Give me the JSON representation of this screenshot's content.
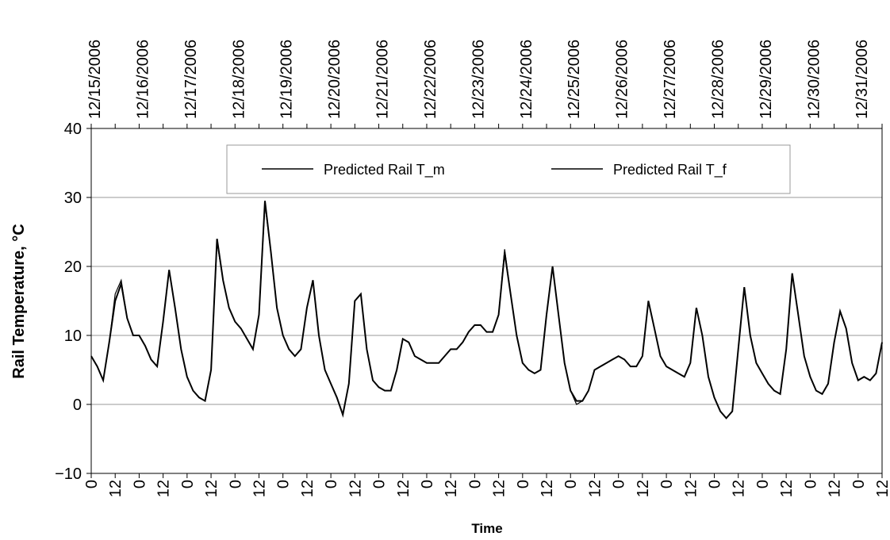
{
  "chart_data": {
    "type": "line",
    "ylabel": "Rail Temperature, °C",
    "xlabel": "Time",
    "xlim": [
      0,
      396
    ],
    "ylim": [
      -10,
      40
    ],
    "yticks": [
      {
        "value": -10,
        "label": "−10"
      },
      0,
      10,
      20,
      30,
      40
    ],
    "grid": true,
    "legend": "top",
    "xticks": [
      0,
      12,
      {
        "value": 24,
        "label": "0"
      },
      {
        "value": 36,
        "label": "12"
      },
      {
        "value": 48,
        "label": "0"
      },
      {
        "value": 60,
        "label": "12"
      },
      {
        "value": 72,
        "label": "0"
      },
      {
        "value": 84,
        "label": "12"
      },
      {
        "value": 96,
        "label": "0"
      },
      {
        "value": 108,
        "label": "12"
      },
      {
        "value": 120,
        "label": "0"
      },
      {
        "value": 132,
        "label": "12"
      },
      {
        "value": 144,
        "label": "0"
      },
      {
        "value": 156,
        "label": "12"
      },
      {
        "value": 168,
        "label": "0"
      },
      {
        "value": 180,
        "label": "12"
      },
      {
        "value": 192,
        "label": "0"
      },
      {
        "value": 204,
        "label": "12"
      },
      {
        "value": 216,
        "label": "0"
      },
      {
        "value": 228,
        "label": "12"
      },
      {
        "value": 240,
        "label": "0"
      },
      {
        "value": 252,
        "label": "12"
      },
      {
        "value": 264,
        "label": "0"
      },
      {
        "value": 276,
        "label": "12"
      },
      {
        "value": 288,
        "label": "0"
      },
      {
        "value": 300,
        "label": "12"
      },
      {
        "value": 312,
        "label": "0"
      },
      {
        "value": 324,
        "label": "12"
      },
      {
        "value": 336,
        "label": "0"
      },
      {
        "value": 348,
        "label": "12"
      },
      {
        "value": 360,
        "label": "0"
      },
      {
        "value": 372,
        "label": "12"
      },
      {
        "value": 384,
        "label": "0"
      },
      {
        "value": 396,
        "label": "12"
      }
    ],
    "x2ticks": [
      {
        "value": 0,
        "label": "12/15/2006"
      },
      {
        "value": 24,
        "label": "12/16/2006"
      },
      {
        "value": 48,
        "label": "12/17/2006"
      },
      {
        "value": 72,
        "label": "12/18/2006"
      },
      {
        "value": 96,
        "label": "12/19/2006"
      },
      {
        "value": 120,
        "label": "12/20/2006"
      },
      {
        "value": 144,
        "label": "12/21/2006"
      },
      {
        "value": 168,
        "label": "12/22/2006"
      },
      {
        "value": 192,
        "label": "12/23/2006"
      },
      {
        "value": 216,
        "label": "12/24/2006"
      },
      {
        "value": 240,
        "label": "12/25/2006"
      },
      {
        "value": 264,
        "label": "12/26/2006"
      },
      {
        "value": 288,
        "label": "12/27/2006"
      },
      {
        "value": 312,
        "label": "12/28/2006"
      },
      {
        "value": 336,
        "label": "12/29/2006"
      },
      {
        "value": 360,
        "label": "12/30/2006"
      },
      {
        "value": 384,
        "label": "12/31/2006"
      }
    ],
    "x": [
      0,
      3,
      6,
      9,
      12,
      15,
      18,
      21,
      24,
      27,
      30,
      33,
      36,
      39,
      42,
      45,
      48,
      51,
      54,
      57,
      60,
      63,
      66,
      69,
      72,
      75,
      78,
      81,
      84,
      87,
      90,
      93,
      96,
      99,
      102,
      105,
      108,
      111,
      114,
      117,
      120,
      123,
      126,
      129,
      132,
      135,
      138,
      141,
      144,
      147,
      150,
      153,
      156,
      159,
      162,
      165,
      168,
      171,
      174,
      177,
      180,
      183,
      186,
      189,
      192,
      195,
      198,
      201,
      204,
      207,
      210,
      213,
      216,
      219,
      222,
      225,
      228,
      231,
      234,
      237,
      240,
      243,
      246,
      249,
      252,
      255,
      258,
      261,
      264,
      267,
      270,
      273,
      276,
      279,
      282,
      285,
      288,
      291,
      294,
      297,
      300,
      303,
      306,
      309,
      312,
      315,
      318,
      321,
      324,
      327,
      330,
      333,
      336,
      339,
      342,
      345,
      348,
      351,
      354,
      357,
      360,
      363,
      366,
      369,
      372,
      375,
      378,
      381,
      384,
      387,
      390,
      393,
      396
    ],
    "series": [
      {
        "name": "Predicted Rail T_m",
        "color": "#000000",
        "values": [
          7,
          5.5,
          3.5,
          9,
          15,
          17.5,
          12.5,
          10,
          10,
          8.5,
          6.5,
          5.5,
          12,
          19.5,
          14,
          8,
          4,
          2,
          1,
          0.5,
          5,
          24,
          18,
          14,
          12,
          11,
          9.5,
          8,
          13,
          29.5,
          22,
          14,
          10,
          8,
          7,
          8,
          14,
          18,
          10,
          5,
          3,
          1,
          -1.5,
          3,
          15,
          16,
          8,
          3.5,
          2.5,
          2,
          2,
          5,
          9.5,
          9,
          7,
          6.5,
          6,
          6,
          6,
          7,
          8,
          8,
          9,
          10.5,
          11.5,
          11.5,
          10.5,
          10.5,
          13,
          22,
          16,
          10,
          6,
          5,
          4.5,
          5,
          13,
          20,
          13,
          6,
          2,
          0.5,
          0.5,
          2,
          5,
          5.5,
          6,
          6.5,
          7,
          6.5,
          5.5,
          5.5,
          7,
          15,
          11,
          7,
          5.5,
          5,
          4.5,
          4,
          6,
          14,
          10,
          4,
          1,
          -1,
          -2,
          -1,
          8,
          17,
          10,
          6,
          4.5,
          3,
          2,
          1.5,
          8,
          19,
          13,
          7,
          4,
          2,
          1.5,
          3,
          9,
          13.5,
          11,
          6,
          3.5,
          4,
          3.5,
          4.5,
          9
        ]
      },
      {
        "name": "Predicted Rail T_f",
        "color": "#000000",
        "values": [
          7,
          5.5,
          3.5,
          9,
          16,
          18,
          12.5,
          10,
          10,
          8.5,
          6.5,
          5.5,
          12,
          19.5,
          14,
          8,
          4,
          2,
          1,
          0.5,
          5,
          23.5,
          18,
          14,
          12,
          11,
          9.5,
          8,
          13,
          29,
          22,
          14,
          10,
          8,
          7,
          8,
          14,
          18,
          10,
          5,
          3,
          1,
          -1.5,
          3,
          15,
          16,
          8,
          3.5,
          2.5,
          2,
          2,
          5,
          9.5,
          9,
          7,
          6.5,
          6,
          6,
          6,
          7,
          8,
          8,
          9,
          10.5,
          11.5,
          11.5,
          10.5,
          10.5,
          13,
          22.5,
          16,
          10,
          6,
          5,
          4.5,
          5,
          13,
          20,
          13,
          6,
          2,
          0,
          0.5,
          2,
          5,
          5.5,
          6,
          6.5,
          7,
          6.5,
          5.5,
          5.5,
          7,
          15,
          11,
          7,
          5.5,
          5,
          4.5,
          4,
          6,
          14,
          10,
          4,
          1,
          -1,
          -2,
          -1,
          8,
          17,
          10,
          6,
          4.5,
          3,
          2,
          1.5,
          8,
          19,
          13,
          7,
          4,
          2,
          1.5,
          3,
          9,
          13.5,
          11,
          6,
          3.5,
          4,
          3.5,
          4.5,
          9
        ]
      }
    ]
  }
}
